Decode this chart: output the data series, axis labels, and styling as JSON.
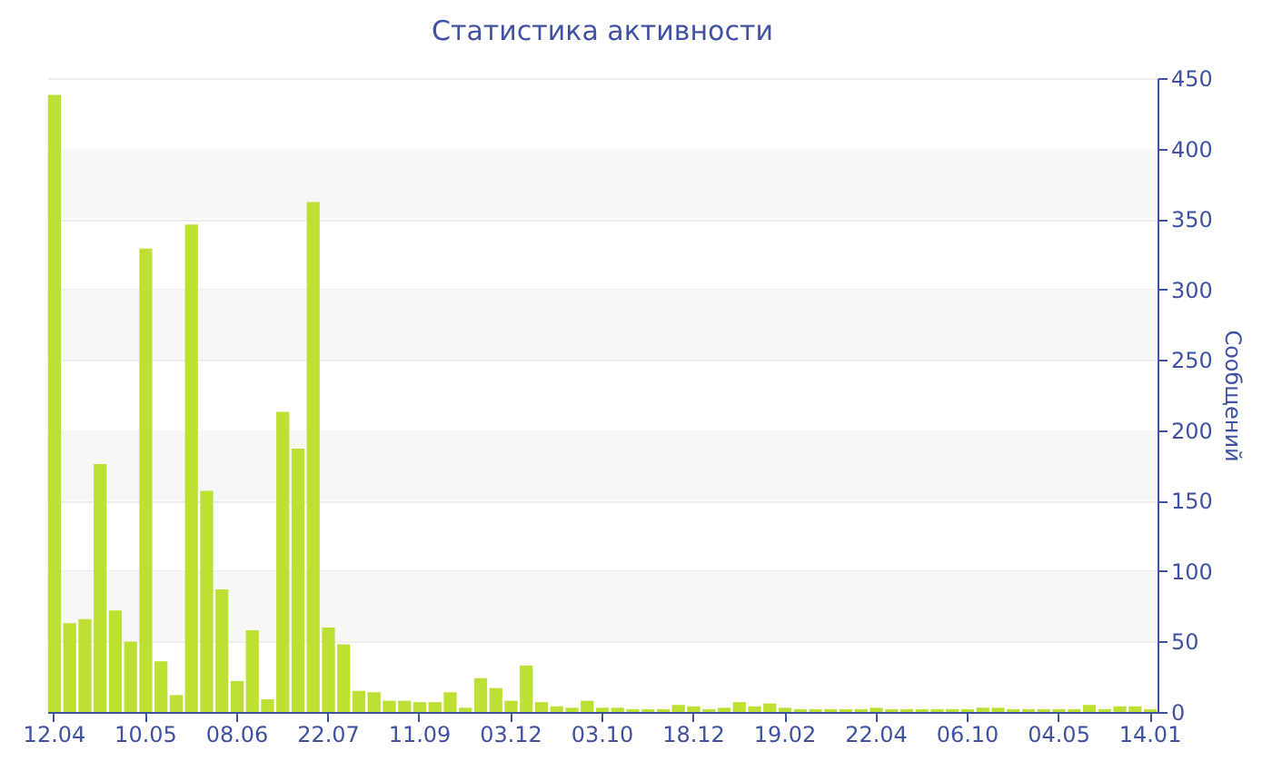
{
  "chart_data": {
    "type": "bar",
    "title": "Статистика активности",
    "ylabel": "Сообщений",
    "categories": [
      "12.04",
      null,
      null,
      null,
      null,
      null,
      "10.05",
      null,
      null,
      null,
      null,
      null,
      "08.06",
      null,
      null,
      null,
      null,
      null,
      "22.07",
      null,
      null,
      null,
      null,
      null,
      "11.09",
      null,
      null,
      null,
      null,
      null,
      "03.12",
      null,
      null,
      null,
      null,
      null,
      "03.10",
      null,
      null,
      null,
      null,
      null,
      "18.12",
      null,
      null,
      null,
      null,
      null,
      "19.02",
      null,
      null,
      null,
      null,
      null,
      "22.04",
      null,
      null,
      null,
      null,
      null,
      "06.10",
      null,
      null,
      null,
      null,
      null,
      "04.05",
      null,
      null,
      null,
      null,
      null,
      "14.01"
    ],
    "values": [
      438,
      63,
      66,
      176,
      72,
      50,
      329,
      36,
      12,
      346,
      157,
      87,
      22,
      58,
      9,
      213,
      187,
      362,
      60,
      48,
      15,
      14,
      8,
      8,
      7,
      7,
      14,
      3,
      24,
      17,
      8,
      33,
      7,
      4,
      3,
      8,
      3,
      3,
      2,
      2,
      2,
      5,
      4,
      2,
      3,
      7,
      4,
      6,
      3,
      2,
      2,
      2,
      2,
      2,
      3,
      2,
      2,
      2,
      2,
      2,
      2,
      3,
      3,
      2,
      2,
      2,
      2,
      2,
      5,
      2,
      4,
      4,
      2
    ],
    "color": "#bde035",
    "ylim": [
      0,
      450
    ],
    "yticks": [
      0,
      50,
      100,
      150,
      200,
      250,
      300,
      350,
      400,
      450
    ],
    "grid": "y"
  }
}
